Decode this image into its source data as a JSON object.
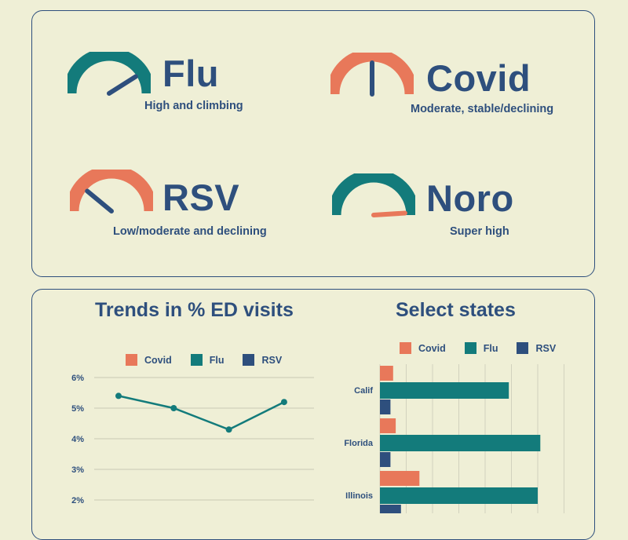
{
  "colors": {
    "covid": "#e8785a",
    "flu": "#137b7b",
    "rsv": "#2e4f7d",
    "background": "#efefd6"
  },
  "gauges": [
    {
      "name": "Flu",
      "status": "High and climbing",
      "color": "#137b7b",
      "needle": "#2e4f7d",
      "level": 0.82
    },
    {
      "name": "Covid",
      "status": "Moderate, stable/declining",
      "color": "#e8785a",
      "needle": "#2e4f7d",
      "level": 0.5
    },
    {
      "name": "RSV",
      "status": "Low/moderate and declining",
      "color": "#e8785a",
      "needle": "#2e4f7d",
      "level": 0.22
    },
    {
      "name": "Noro",
      "status": "Super high",
      "color": "#137b7b",
      "needle": "#e8785a",
      "level": 0.98
    }
  ],
  "chart_data": [
    {
      "type": "line",
      "title": "Trends in % ED visits",
      "legend": [
        "Covid",
        "Flu",
        "RSV"
      ],
      "y_ticks": [
        "6%",
        "5%",
        "4%",
        "3%",
        "2%"
      ],
      "ylim": [
        2,
        6
      ],
      "series": [
        {
          "name": "Flu",
          "values": [
            5.4,
            5.0,
            4.3,
            5.2
          ]
        }
      ]
    },
    {
      "type": "bar",
      "orientation": "horizontal",
      "title": "Select states",
      "legend": [
        "Covid",
        "Flu",
        "RSV"
      ],
      "categories": [
        "Calif",
        "Florida",
        "Illinois"
      ],
      "series": [
        {
          "name": "Covid",
          "values": [
            0.5,
            0.6,
            1.5
          ]
        },
        {
          "name": "Flu",
          "values": [
            4.9,
            6.1,
            6.0
          ]
        },
        {
          "name": "RSV",
          "values": [
            0.4,
            0.4,
            0.8
          ]
        }
      ],
      "xlim": [
        0,
        7
      ]
    }
  ]
}
